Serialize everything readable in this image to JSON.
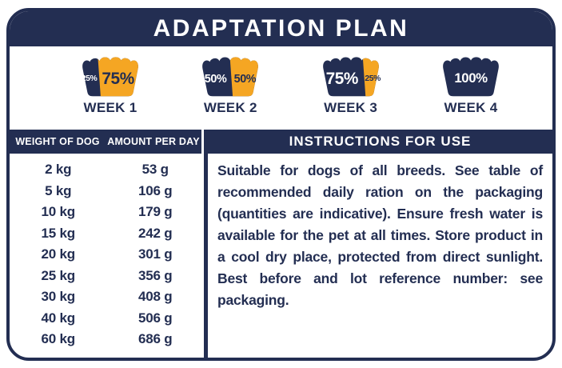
{
  "title": "ADAPTATION PLAN",
  "colors": {
    "navy": "#232E52",
    "orange": "#F5A623"
  },
  "weeks": [
    {
      "label": "WEEK 1",
      "orange_start_pct": 30,
      "portions": [
        {
          "value": "25%"
        },
        {
          "value": "75%"
        }
      ]
    },
    {
      "label": "WEEK 2",
      "orange_start_pct": 49,
      "portions": [
        {
          "value": "50%"
        },
        {
          "value": "50%"
        }
      ]
    },
    {
      "label": "WEEK 3",
      "orange_start_pct": 68,
      "portions": [
        {
          "value": "75%"
        },
        {
          "value": "25%"
        }
      ]
    },
    {
      "label": "WEEK 4",
      "orange_start_pct": 100,
      "portions": [
        {
          "value": "100%"
        }
      ]
    }
  ],
  "feeding_table": {
    "headers": [
      "WEIGHT OF DOG",
      "AMOUNT PER DAY"
    ],
    "rows": [
      [
        "2 kg",
        "53 g"
      ],
      [
        "5 kg",
        "106 g"
      ],
      [
        "10 kg",
        "179 g"
      ],
      [
        "15 kg",
        "242 g"
      ],
      [
        "20 kg",
        "301 g"
      ],
      [
        "25 kg",
        "356 g"
      ],
      [
        "30 kg",
        "408 g"
      ],
      [
        "40 kg",
        "506 g"
      ],
      [
        "60 kg",
        "686 g"
      ]
    ]
  },
  "instructions": {
    "header": "INSTRUCTIONS FOR USE",
    "body": "Suitable for dogs of all breeds. See table of recommended daily ration on the packaging (quantities are indicative). Ensure fresh water is available for the pet at all times. Store product in a cool dry place, protected from direct sunlight. Best before and lot reference number: see packaging."
  }
}
